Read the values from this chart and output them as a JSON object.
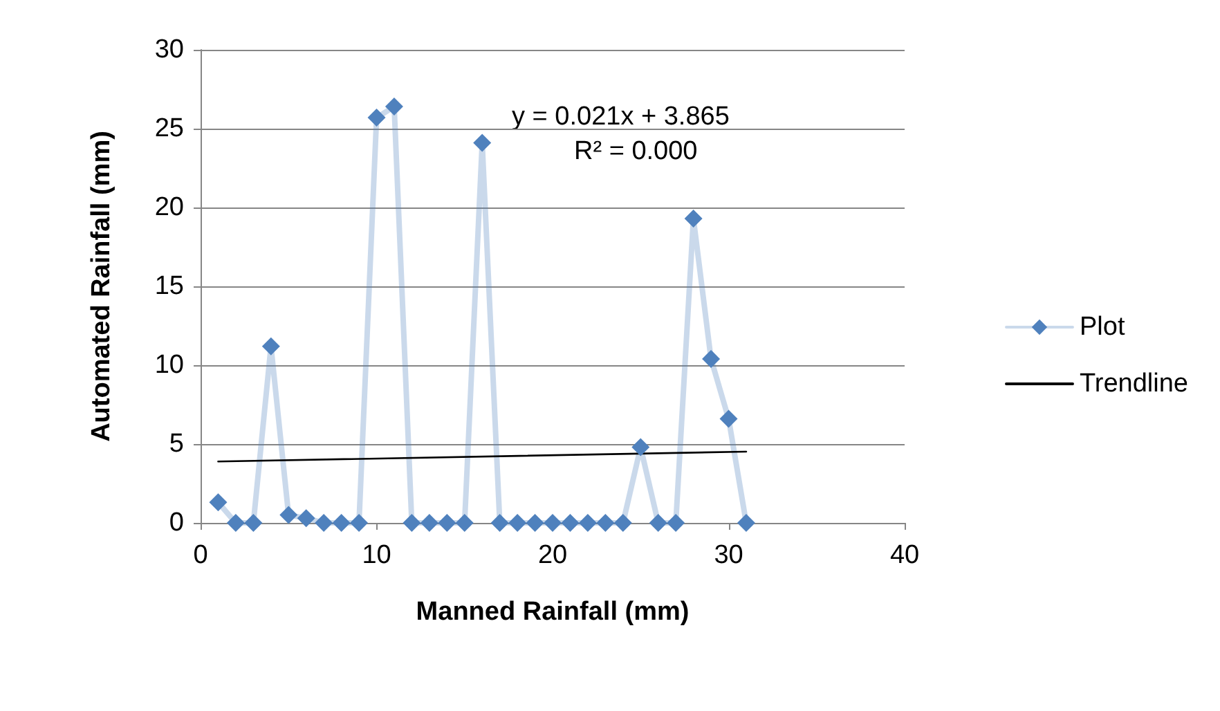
{
  "chart_data": {
    "type": "line",
    "xlabel": "Manned Rainfall (mm)",
    "ylabel": "Automated Rainfall (mm)",
    "xlim": [
      0,
      40
    ],
    "xticks": [
      0,
      10,
      20,
      30,
      40
    ],
    "ylim": [
      0,
      30
    ],
    "yticks": [
      0,
      5,
      10,
      15,
      20,
      25,
      30
    ],
    "grid": "y",
    "legend": "right",
    "line_style": "solid",
    "annotations": [
      "y = 0.021x + 3.865",
      "R² = 0.000"
    ],
    "series": [
      {
        "name": "Plot",
        "marker": "diamond",
        "color": "#4f81bd",
        "x": [
          1,
          2,
          3,
          4,
          5,
          6,
          7,
          8,
          9,
          10,
          11,
          12,
          13,
          14,
          15,
          16,
          17,
          18,
          19,
          20,
          21,
          22,
          23,
          24,
          25,
          26,
          27,
          28,
          29,
          30,
          31
        ],
        "values": [
          1.3,
          0,
          0,
          11.2,
          0.5,
          0.3,
          0,
          0,
          0,
          25.7,
          26.4,
          0,
          0,
          0,
          0,
          24.1,
          0,
          0,
          0,
          0,
          0,
          0,
          0,
          0,
          4.8,
          0,
          0,
          19.3,
          10.4,
          6.6,
          0
        ]
      },
      {
        "name": "Trendline",
        "marker": "none",
        "color": "#000000",
        "x": [
          1,
          31
        ],
        "values": [
          3.89,
          4.52
        ]
      }
    ]
  }
}
